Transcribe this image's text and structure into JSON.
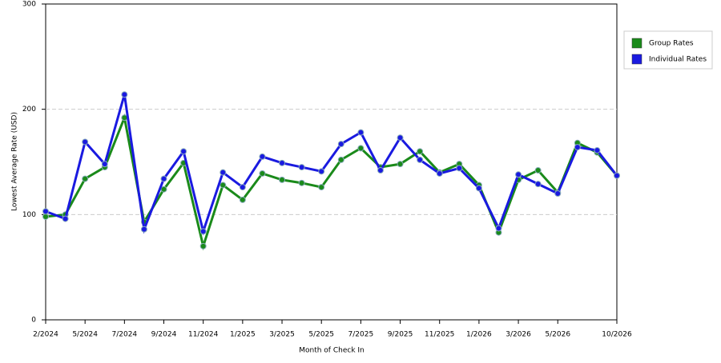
{
  "chart_data": {
    "type": "line",
    "y_label": "Lowest Average Rate (USD)",
    "x_label": "Month of Check In",
    "categories": [
      "2/2024",
      null,
      "5/2024",
      null,
      "7/2024",
      null,
      "9/2024",
      null,
      "11/2024",
      null,
      "1/2025",
      null,
      "3/2025",
      null,
      "5/2025",
      null,
      "7/2025",
      null,
      "9/2025",
      null,
      "11/2025",
      null,
      "1/2026",
      null,
      "3/2026",
      null,
      "5/2026",
      null,
      null,
      "10/2026"
    ],
    "series": [
      {
        "name": "Group Rates",
        "color": "#1a8a1a",
        "values": [
          98,
          100,
          134,
          145,
          192,
          93,
          124,
          149,
          70,
          128,
          114,
          139,
          133,
          130,
          126,
          152,
          163,
          145,
          148,
          160,
          140,
          148,
          128,
          83,
          133,
          142,
          121,
          168,
          159,
          137
        ]
      },
      {
        "name": "Individual Rates",
        "color": "#1a1ae0",
        "values": [
          103,
          96,
          169,
          148,
          214,
          86,
          134,
          160,
          84,
          140,
          126,
          155,
          149,
          145,
          141,
          167,
          178,
          142,
          173,
          152,
          139,
          144,
          125,
          87,
          138,
          129,
          120,
          164,
          161,
          137
        ]
      }
    ],
    "ylim": [
      0,
      300
    ],
    "yticks": [
      0,
      100,
      200,
      300
    ],
    "grid": true,
    "legend": "right"
  }
}
